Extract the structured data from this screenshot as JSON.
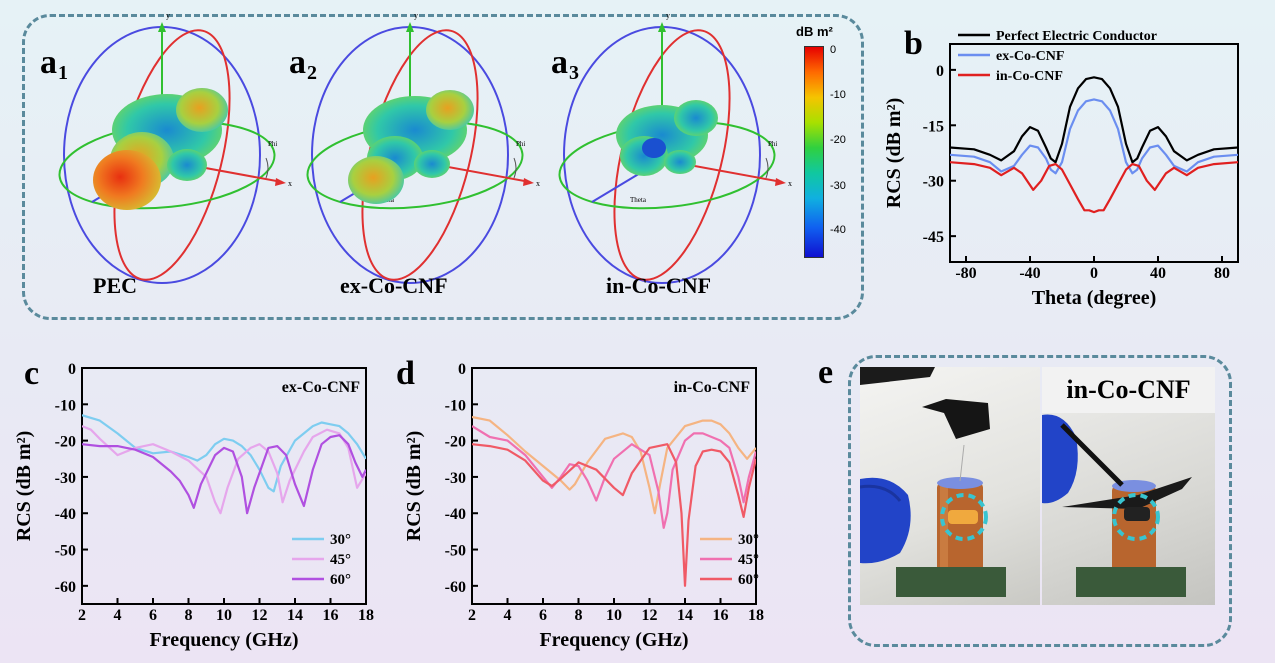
{
  "panel_a": {
    "letters": [
      "a",
      "a",
      "a"
    ],
    "subscripts": [
      "1",
      "2",
      "3"
    ],
    "samples": [
      "PEC",
      "ex-Co-CNF",
      "in-Co-CNF"
    ],
    "axis_labels": {
      "x": "x",
      "y": "y",
      "phi": "Phi",
      "theta": "Theta"
    },
    "colorbar": {
      "title": "dB m²",
      "ticks": [
        "0",
        "-10",
        "-20",
        "-30",
        "-40"
      ]
    }
  },
  "panel_e": {
    "letter": "e",
    "label": "in-Co-CNF"
  },
  "chart_data": [
    {
      "id": "b",
      "letter": "b",
      "type": "line",
      "xlabel": "Theta (degree)",
      "ylabel": "RCS (dB m²)",
      "xlim": [
        -90,
        90
      ],
      "ylim": [
        -52,
        7
      ],
      "xticks": [
        -80,
        -40,
        0,
        40,
        80
      ],
      "yticks": [
        0,
        -15,
        -30,
        -45
      ],
      "legend": "top-left",
      "series": [
        {
          "name": "Perfect Electric Conductor",
          "color": "#000000",
          "x": [
            -90,
            -75,
            -65,
            -58,
            -50,
            -45,
            -40,
            -35,
            -30,
            -27,
            -24,
            -20,
            -15,
            -10,
            -5,
            0,
            5,
            10,
            15,
            20,
            24,
            27,
            30,
            35,
            40,
            45,
            50,
            58,
            65,
            75,
            90
          ],
          "y": [
            -21,
            -21.5,
            -23,
            -24.5,
            -22,
            -18,
            -15.5,
            -16.5,
            -21,
            -24,
            -25,
            -20,
            -10,
            -5,
            -2.5,
            -2,
            -2.5,
            -5,
            -10,
            -20,
            -25,
            -24,
            -21,
            -16.5,
            -15.5,
            -18,
            -22,
            -24.5,
            -23,
            -21.5,
            -21
          ]
        },
        {
          "name": "ex-Co-CNF",
          "color": "#6b8ef0",
          "x": [
            -90,
            -75,
            -65,
            -58,
            -50,
            -45,
            -40,
            -35,
            -30,
            -27,
            -24,
            -20,
            -15,
            -10,
            -5,
            0,
            5,
            10,
            15,
            20,
            24,
            27,
            30,
            35,
            40,
            45,
            50,
            58,
            65,
            75,
            90
          ],
          "y": [
            -23,
            -23.5,
            -25,
            -27.5,
            -26,
            -23,
            -20.5,
            -21,
            -24,
            -27,
            -28,
            -25,
            -16,
            -11,
            -8.5,
            -8,
            -8.5,
            -11,
            -16,
            -25,
            -28,
            -27,
            -24,
            -21,
            -20.5,
            -23,
            -26,
            -27.5,
            -25,
            -23.5,
            -23
          ]
        },
        {
          "name": "in-Co-CNF",
          "color": "#e02020",
          "x": [
            -90,
            -75,
            -65,
            -58,
            -50,
            -45,
            -38,
            -33,
            -28,
            -24,
            -20,
            -15,
            -10,
            -6,
            -3,
            0,
            3,
            6,
            10,
            15,
            20,
            24,
            28,
            33,
            38,
            45,
            50,
            58,
            65,
            75,
            90
          ],
          "y": [
            -25,
            -25.5,
            -26.5,
            -28.5,
            -26.5,
            -28,
            -32.5,
            -30,
            -26,
            -25.5,
            -27,
            -31,
            -35,
            -38,
            -38,
            -38.5,
            -38,
            -38,
            -35,
            -31,
            -27,
            -25.5,
            -26,
            -30,
            -32.5,
            -28,
            -26.5,
            -28.5,
            -26.5,
            -25.5,
            -25
          ]
        }
      ]
    },
    {
      "id": "c",
      "letter": "c",
      "type": "line",
      "annotation": "ex-Co-CNF",
      "xlabel": "Frequency (GHz)",
      "ylabel": "RCS (dB m²)",
      "xlim": [
        2,
        18
      ],
      "ylim": [
        -65,
        0
      ],
      "xticks": [
        2,
        4,
        6,
        8,
        10,
        12,
        14,
        16,
        18
      ],
      "yticks": [
        0,
        -10,
        -20,
        -30,
        -40,
        -50,
        -60
      ],
      "legend": "bottom-right",
      "series": [
        {
          "name": "30°",
          "color": "#7ecdf0",
          "x": [
            2,
            3,
            4,
            5,
            6,
            7,
            8,
            8.5,
            9,
            9.5,
            10,
            10.5,
            11,
            11.5,
            12,
            12.5,
            12.8,
            13.2,
            14,
            15,
            15.5,
            16,
            16.5,
            17,
            17.5,
            18
          ],
          "y": [
            -13,
            -14.5,
            -18,
            -22,
            -23.5,
            -23,
            -24.5,
            -25.5,
            -24,
            -21,
            -19.5,
            -20,
            -21.5,
            -24,
            -28,
            -33,
            -34,
            -27,
            -20,
            -16,
            -15,
            -15.5,
            -16,
            -18,
            -21,
            -25
          ]
        },
        {
          "name": "45°",
          "color": "#e6a6ec",
          "x": [
            2,
            2.5,
            3,
            4,
            5,
            6,
            7,
            8,
            9,
            9.5,
            9.8,
            10.2,
            10.8,
            11.5,
            12,
            12.5,
            13,
            13.3,
            13.7,
            14.5,
            15,
            15.8,
            16.5,
            17,
            17.5,
            18
          ],
          "y": [
            -16,
            -17,
            -19.5,
            -24,
            -22,
            -21,
            -23,
            -25.5,
            -30,
            -37,
            -40,
            -33,
            -25,
            -22,
            -21,
            -23,
            -29,
            -37,
            -31,
            -23,
            -19,
            -17,
            -18,
            -22,
            -33,
            -29
          ]
        },
        {
          "name": "60°",
          "color": "#b050e0",
          "x": [
            2,
            3,
            4,
            5,
            6,
            7,
            7.5,
            8,
            8.3,
            8.7,
            9.5,
            10,
            10.5,
            11,
            11.3,
            11.7,
            12.5,
            13,
            13.5,
            14,
            14.5,
            15,
            15.5,
            16,
            16.5,
            17,
            17.4,
            17.8,
            18
          ],
          "y": [
            -21,
            -21.5,
            -21.5,
            -22.5,
            -24.5,
            -28.5,
            -31,
            -35,
            -38.5,
            -32,
            -24,
            -22,
            -23,
            -30,
            -40,
            -33,
            -22,
            -21.5,
            -24,
            -32,
            -38,
            -28,
            -21,
            -19,
            -18.5,
            -21,
            -26,
            -30,
            -28
          ]
        }
      ]
    },
    {
      "id": "d",
      "letter": "d",
      "type": "line",
      "annotation": "in-Co-CNF",
      "xlabel": "Frequency (GHz)",
      "ylabel": "RCS (dB m²)",
      "xlim": [
        2,
        18
      ],
      "ylim": [
        -65,
        0
      ],
      "xticks": [
        2,
        4,
        6,
        8,
        10,
        12,
        14,
        16,
        18
      ],
      "yticks": [
        0,
        -10,
        -20,
        -30,
        -40,
        -50,
        -60
      ],
      "legend": "bottom-right",
      "series": [
        {
          "name": "30°",
          "color": "#f5b482",
          "x": [
            2,
            3,
            4,
            5,
            6,
            7,
            7.5,
            7.8,
            8.5,
            9.5,
            10.5,
            11,
            11.5,
            12,
            12.3,
            12.6,
            13,
            14,
            15,
            15.5,
            16,
            16.5,
            17,
            17.5,
            18
          ],
          "y": [
            -13.5,
            -14.5,
            -18.5,
            -23,
            -27,
            -31,
            -33.5,
            -32,
            -26,
            -19.5,
            -18,
            -19,
            -23,
            -33,
            -40,
            -32,
            -22,
            -16,
            -14.5,
            -14.5,
            -15.5,
            -18,
            -22,
            -25,
            -22
          ]
        },
        {
          "name": "45°",
          "color": "#f070b0",
          "x": [
            2,
            3,
            4,
            5,
            6,
            6.5,
            7,
            7.5,
            8,
            8.5,
            9,
            9.5,
            10,
            11,
            12,
            12.5,
            12.8,
            13,
            13.3,
            14,
            14.5,
            15,
            16,
            16.5,
            17,
            17.3,
            17.6,
            18
          ],
          "y": [
            -16,
            -19,
            -20,
            -24,
            -30,
            -33,
            -30,
            -26.5,
            -27,
            -31,
            -36.5,
            -30,
            -25,
            -21,
            -24,
            -34,
            -44,
            -40,
            -28,
            -20,
            -18,
            -18,
            -20,
            -22,
            -30,
            -37,
            -30,
            -23
          ]
        },
        {
          "name": "60°",
          "color": "#f05a66",
          "x": [
            2,
            3,
            4,
            5,
            6,
            6.5,
            7,
            8,
            9,
            10,
            10.5,
            11,
            12,
            13,
            13.5,
            13.8,
            14,
            14.2,
            14.6,
            15,
            15.5,
            16,
            16.5,
            17,
            17.3,
            17.6,
            18
          ],
          "y": [
            -21,
            -21.5,
            -22.5,
            -25.5,
            -31,
            -32.5,
            -30.5,
            -26,
            -28,
            -33,
            -35,
            -29,
            -22,
            -21,
            -26,
            -40,
            -60,
            -42,
            -27,
            -23,
            -22.5,
            -23,
            -26,
            -35,
            -41,
            -33,
            -25
          ]
        }
      ]
    }
  ]
}
